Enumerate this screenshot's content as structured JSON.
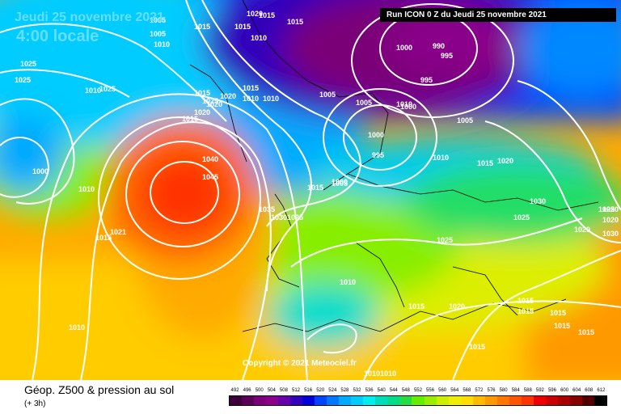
{
  "title": {
    "date": "Jeudi 25 novembre 2021",
    "time": "4:00 locale"
  },
  "run_info": "Run ICON 0 Z du Jeudi 25 novembre 2021",
  "copyright": "Copyright © 2021 Meteociel.fr",
  "footer": {
    "title": "Géop. Z500 & pression au sol",
    "subtitle": "(+ 3h)"
  },
  "legend": {
    "labels": [
      "492",
      "496",
      "500",
      "504",
      "508",
      "512",
      "516",
      "520",
      "524",
      "528",
      "532",
      "536",
      "540",
      "544",
      "548",
      "552",
      "556",
      "560",
      "564",
      "568",
      "572",
      "576",
      "580",
      "584",
      "588",
      "592",
      "596",
      "600",
      "604",
      "608",
      "612"
    ],
    "colors": [
      "#3a0039",
      "#5a0058",
      "#7a0078",
      "#8a008a",
      "#6600aa",
      "#3300bb",
      "#0000dd",
      "#0044ff",
      "#0077ff",
      "#00aaff",
      "#00ccff",
      "#00eeee",
      "#00ddbb",
      "#00dd88",
      "#22dd44",
      "#66ee00",
      "#99ee00",
      "#ccee00",
      "#eeee00",
      "#ffdd00",
      "#ffbb00",
      "#ff9900",
      "#ff7700",
      "#ff5500",
      "#ff3300",
      "#ee0000",
      "#cc0000",
      "#aa0000",
      "#880000",
      "#550000",
      "#000000"
    ]
  },
  "isobars": [
    "1005",
    "1015",
    "1005",
    "1015",
    "1020",
    "1010",
    "1010",
    "1015",
    "1015",
    "1005",
    "1010",
    "1015",
    "1025",
    "1025",
    "1025",
    "1025",
    "1015",
    "1020",
    "1020",
    "1020",
    "1015",
    "1010",
    "1010",
    "1005",
    "1000",
    "990",
    "995",
    "995",
    "1010",
    "1005",
    "1000",
    "1000",
    "995",
    "1005",
    "1010",
    "1015",
    "1020",
    "1040",
    "1045",
    "1035",
    "1030",
    "1025",
    "1000",
    "1015",
    "1030",
    "1025",
    "1020",
    "1020",
    "1020",
    "1025",
    "1030",
    "1025",
    "1015",
    "1021",
    "1010",
    "1000",
    "1010",
    "1010",
    "1015",
    "1020",
    "1015",
    "1015",
    "1015",
    "1015",
    "1015",
    "1015",
    "1010",
    "1010"
  ]
}
